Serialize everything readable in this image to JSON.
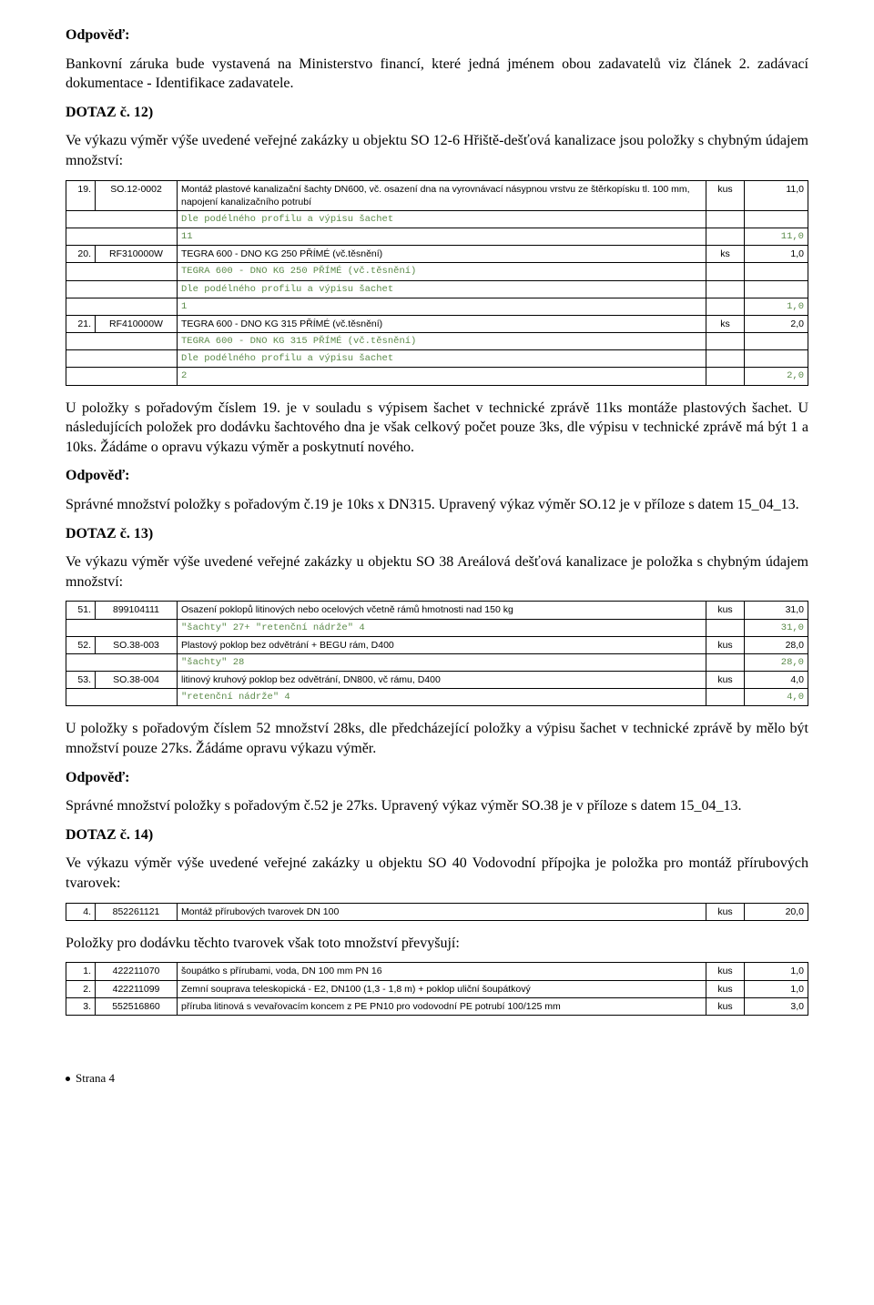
{
  "h_odpoved": "Odpověď:",
  "p1": "Bankovní záruka bude vystavená na Ministerstvo financí, které jedná jménem obou zadavatelů viz článek 2. zadávací dokumentace - Identifikace zadavatele.",
  "h_dotaz12": "DOTAZ č. 12)",
  "p2": "Ve výkazu výměr výše uvedené veřejné zakázky u objektu SO 12-6 Hřiště-dešťová kanalizace jsou položky s chybným údajem množství:",
  "t1": {
    "rows": [
      {
        "type": "main",
        "num": "19.",
        "code": "SO.12-0002",
        "desc": "Montáž plastové kanalizační šachty DN600, vč. osazení dna na vyrovnávací násypnou vrstvu ze štěrkopísku tl. 100 mm, napojení kanalizačního potrubí",
        "unit": "kus",
        "qty": "11,0"
      },
      {
        "type": "sub",
        "num": "",
        "code": "",
        "desc": "Dle podélného profilu a výpisu šachet",
        "unit": "",
        "qty": ""
      },
      {
        "type": "sub",
        "num": "",
        "code": "",
        "desc": "11",
        "unit": "",
        "qty": "11,0"
      },
      {
        "type": "main",
        "num": "20.",
        "code": "RF310000W",
        "desc": "TEGRA 600 - DNO KG 250 PŘÍMÉ      (vč.těsnění)",
        "unit": "ks",
        "qty": "1,0"
      },
      {
        "type": "sub",
        "num": "",
        "code": "",
        "desc": "TEGRA 600 - DNO KG 250 PŘÍMÉ       (vč.těsnění)",
        "unit": "",
        "qty": ""
      },
      {
        "type": "sub",
        "num": "",
        "code": "",
        "desc": "Dle podélného profilu a výpisu šachet",
        "unit": "",
        "qty": ""
      },
      {
        "type": "sub",
        "num": "",
        "code": "",
        "desc": "1",
        "unit": "",
        "qty": "1,0"
      },
      {
        "type": "main",
        "num": "21.",
        "code": "RF410000W",
        "desc": "TEGRA 600 - DNO KG 315 PŘÍMÉ      (vč.těsnění)",
        "unit": "ks",
        "qty": "2,0"
      },
      {
        "type": "sub",
        "num": "",
        "code": "",
        "desc": "TEGRA 600 - DNO KG 315 PŘÍMÉ       (vč.těsnění)",
        "unit": "",
        "qty": ""
      },
      {
        "type": "sub",
        "num": "",
        "code": "",
        "desc": "Dle podélného profilu a výpisu šachet",
        "unit": "",
        "qty": ""
      },
      {
        "type": "sub",
        "num": "",
        "code": "",
        "desc": "2",
        "unit": "",
        "qty": "2,0"
      }
    ],
    "sub_color": "#5b8a4a"
  },
  "p3": "U položky s pořadovým číslem 19. je v souladu s výpisem šachet v technické zprávě 11ks montáže plastových šachet. U následujících položek pro dodávku šachtového dna je však celkový počet pouze 3ks, dle výpisu v technické zprávě má být 1 a 10ks. Žádáme o opravu výkazu výměr a poskytnutí nového.",
  "p4": "Správné množství položky s pořadovým č.19  je 10ks x DN315. Upravený výkaz výměr SO.12  je v příloze s datem 15_04_13.",
  "h_dotaz13": "DOTAZ č. 13)",
  "p5": "Ve výkazu výměr výše uvedené veřejné zakázky u objektu SO 38 Areálová dešťová kanalizace je položka s chybným údajem množství:",
  "t2": {
    "rows": [
      {
        "type": "main",
        "num": "51.",
        "code": "899104111",
        "desc": "Osazení poklopů litinových nebo ocelových včetně rámů hmotnosti nad 150 kg",
        "unit": "kus",
        "qty": "31,0"
      },
      {
        "type": "sub",
        "num": "",
        "code": "",
        "desc": "\"šachty\" 27+ \"retenční nádrže\" 4",
        "unit": "",
        "qty": "31,0"
      },
      {
        "type": "main",
        "num": "52.",
        "code": "SO.38-003",
        "desc": "Plastový poklop bez odvětrání + BEGU rám, D400",
        "unit": "kus",
        "qty": "28,0"
      },
      {
        "type": "sub",
        "num": "",
        "code": "",
        "desc": "\"šachty\" 28",
        "unit": "",
        "qty": "28,0"
      },
      {
        "type": "main",
        "num": "53.",
        "code": "SO.38-004",
        "desc": "litinový kruhový poklop bez odvětrání, DN800, vč rámu, D400",
        "unit": "kus",
        "qty": "4,0"
      },
      {
        "type": "sub",
        "num": "",
        "code": "",
        "desc": "\"retenční nádrže\" 4",
        "unit": "",
        "qty": "4,0"
      }
    ]
  },
  "p6": "U položky s pořadovým číslem 52 množství 28ks, dle předcházející položky a výpisu šachet v technické zprávě by mělo být množství pouze 27ks. Žádáme opravu výkazu výměr.",
  "p7": "Správné množství položky s pořadovým č.52  je 27ks. Upravený výkaz výměr SO.38  je v příloze s datem 15_04_13.",
  "h_dotaz14": "DOTAZ č. 14)",
  "p8": "Ve výkazu výměr výše uvedené veřejné zakázky u objektu SO 40 Vodovodní přípojka je položka pro montáž přírubových tvarovek:",
  "t3": {
    "rows": [
      {
        "type": "main",
        "num": "4.",
        "code": "852261121",
        "desc": "Montáž přírubových tvarovek DN 100",
        "unit": "kus",
        "qty": "20,0"
      }
    ]
  },
  "p9": "Položky pro dodávku těchto tvarovek však toto množství převyšují:",
  "t4": {
    "rows": [
      {
        "type": "main",
        "num": "1.",
        "code": "422211070",
        "desc": "šoupátko s přírubami, voda, DN 100 mm PN 16",
        "unit": "kus",
        "qty": "1,0"
      },
      {
        "type": "main",
        "num": "2.",
        "code": "422211099",
        "desc": "Zemní souprava teleskopická - E2, DN100 (1,3 - 1,8 m) + poklop uliční šoupátkový",
        "unit": "kus",
        "qty": "1,0"
      },
      {
        "type": "main",
        "num": "3.",
        "code": "552516860",
        "desc": "příruba litinová s vevařovacím koncem z PE PN10 pro vodovodní PE potrubí 100/125 mm",
        "unit": "kus",
        "qty": "3,0"
      }
    ]
  },
  "footer": "Strana 4"
}
